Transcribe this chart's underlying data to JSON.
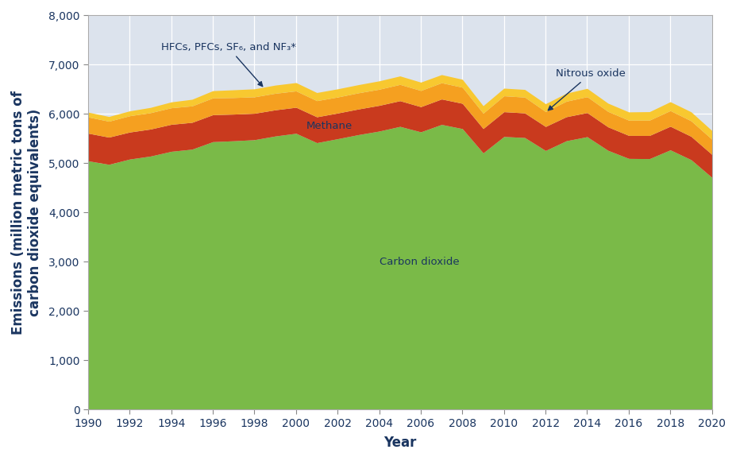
{
  "years": [
    1990,
    1991,
    1992,
    1993,
    1994,
    1995,
    1996,
    1997,
    1998,
    1999,
    2000,
    2001,
    2002,
    2003,
    2004,
    2005,
    2006,
    2007,
    2008,
    2009,
    2010,
    2011,
    2012,
    2013,
    2014,
    2015,
    2016,
    2017,
    2018,
    2019,
    2020
  ],
  "co2": [
    5049,
    4977,
    5084,
    5145,
    5241,
    5285,
    5437,
    5455,
    5477,
    5552,
    5607,
    5417,
    5497,
    5580,
    5652,
    5747,
    5636,
    5787,
    5702,
    5209,
    5542,
    5521,
    5258,
    5456,
    5538,
    5262,
    5097,
    5093,
    5271,
    5072,
    4713
  ],
  "methane": [
    560,
    552,
    548,
    548,
    548,
    544,
    547,
    541,
    536,
    531,
    528,
    524,
    521,
    520,
    522,
    521,
    511,
    516,
    513,
    494,
    503,
    499,
    487,
    487,
    489,
    476,
    467,
    470,
    479,
    473,
    466
  ],
  "n2o": [
    330,
    323,
    331,
    332,
    336,
    334,
    341,
    336,
    334,
    336,
    332,
    328,
    325,
    328,
    327,
    331,
    329,
    330,
    327,
    312,
    323,
    321,
    304,
    315,
    323,
    313,
    309,
    311,
    318,
    315,
    308
  ],
  "hfcs": [
    97,
    96,
    99,
    107,
    119,
    134,
    147,
    158,
    162,
    166,
    169,
    165,
    166,
    166,
    170,
    172,
    169,
    165,
    161,
    152,
    155,
    156,
    158,
    163,
    169,
    168,
    168,
    172,
    180,
    183,
    177
  ],
  "colors": {
    "co2": "#7aba48",
    "methane": "#c93a1e",
    "n2o": "#f5a020",
    "hfcs": "#f8c830"
  },
  "labels": {
    "co2": "Carbon dioxide",
    "methane": "Methane",
    "n2o": "Nitrous oxide",
    "hfcs": "HFCs, PFCs, SF₆, and NF₃*"
  },
  "ylabel": "Emissions (million metric tons of\ncarbon dioxide equivalents)",
  "xlabel": "Year",
  "ylim": [
    0,
    8000
  ],
  "yticks": [
    0,
    1000,
    2000,
    3000,
    4000,
    5000,
    6000,
    7000,
    8000
  ],
  "background_color": "#dce3ed",
  "text_color": "#1a3560",
  "label_fontsize": 11,
  "axis_fontsize": 12,
  "tick_fontsize": 10
}
